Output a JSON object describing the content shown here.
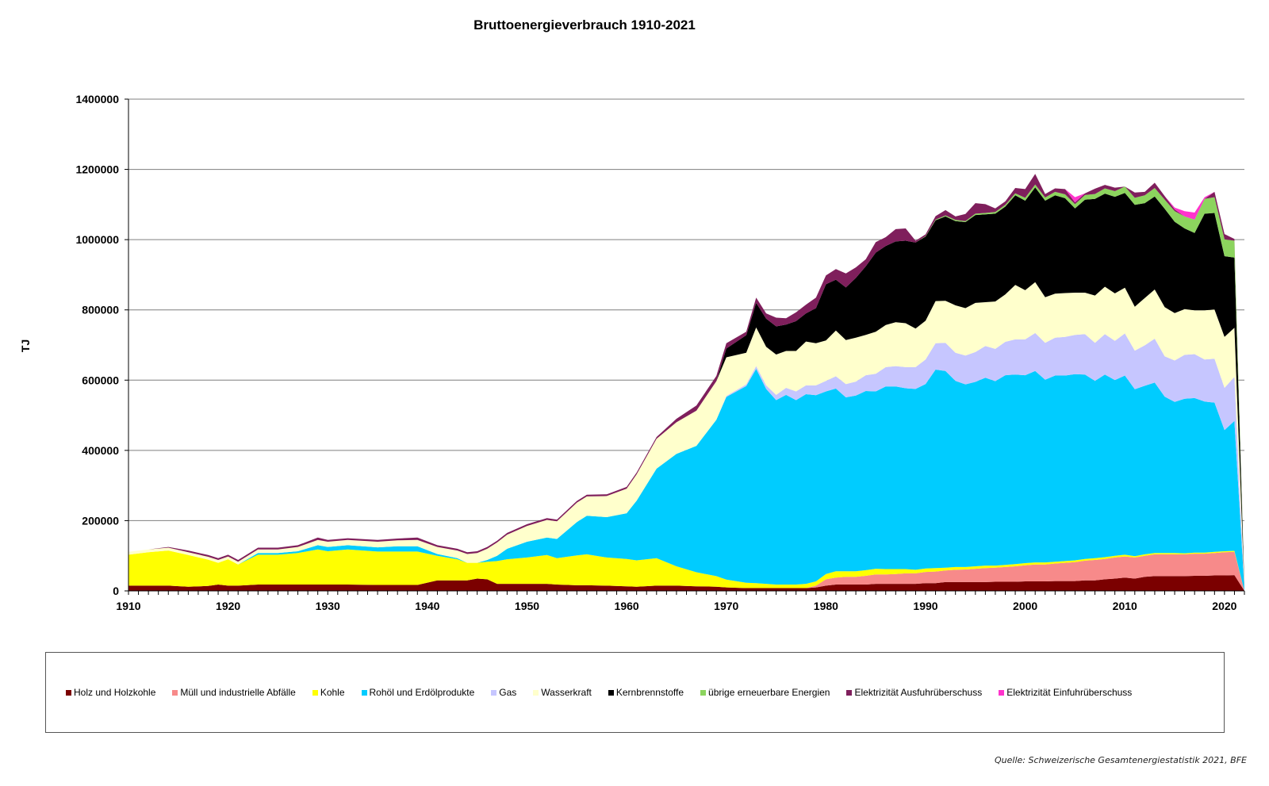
{
  "chart_data": {
    "type": "area",
    "stacked": true,
    "title": "Bruttoenergieverbrauch 1910-2021",
    "xlabel": "",
    "ylabel": "TJ",
    "xlim": [
      1910,
      2022
    ],
    "ylim": [
      0,
      1400000
    ],
    "x_ticks": [
      "1910",
      "1920",
      "1930",
      "1940",
      "1950",
      "1960",
      "1970",
      "1980",
      "1990",
      "2000",
      "2010",
      "2020"
    ],
    "y_ticks": [
      "0",
      "200000",
      "400000",
      "600000",
      "800000",
      "1000000",
      "1200000",
      "1400000"
    ],
    "grid": true,
    "legend_position": "bottom",
    "x": [
      1910,
      1912,
      1914,
      1916,
      1918,
      1919,
      1920,
      1921,
      1923,
      1925,
      1927,
      1929,
      1930,
      1932,
      1935,
      1937,
      1939,
      1941,
      1943,
      1944,
      1945,
      1946,
      1947,
      1948,
      1950,
      1952,
      1953,
      1955,
      1956,
      1958,
      1960,
      1961,
      1963,
      1965,
      1967,
      1969,
      1970,
      1972,
      1973,
      1974,
      1975,
      1976,
      1977,
      1978,
      1979,
      1980,
      1981,
      1982,
      1983,
      1984,
      1985,
      1986,
      1987,
      1988,
      1989,
      1990,
      1991,
      1992,
      1993,
      1994,
      1995,
      1996,
      1997,
      1998,
      1999,
      2000,
      2001,
      2002,
      2003,
      2004,
      2005,
      2006,
      2007,
      2008,
      2009,
      2010,
      2011,
      2012,
      2013,
      2014,
      2015,
      2016,
      2017,
      2018,
      2019,
      2020,
      2021,
      2022
    ],
    "series": [
      {
        "name": "Holz und Holzkohle",
        "color": "#7b0000",
        "values": [
          15000,
          15000,
          15000,
          12000,
          14000,
          18000,
          15000,
          15000,
          18000,
          18000,
          18000,
          18000,
          18000,
          18000,
          17000,
          17000,
          17000,
          30000,
          30000,
          30000,
          35000,
          33000,
          20000,
          20000,
          20000,
          20000,
          18000,
          16000,
          16000,
          15000,
          13000,
          12000,
          15000,
          15000,
          13000,
          12000,
          10000,
          8000,
          8000,
          8000,
          8000,
          8000,
          8000,
          8000,
          10000,
          15000,
          18000,
          18000,
          18000,
          18000,
          20000,
          20000,
          20000,
          20000,
          20000,
          22000,
          22000,
          25000,
          25000,
          25000,
          25000,
          25000,
          26000,
          26000,
          26000,
          27000,
          27000,
          27000,
          28000,
          28000,
          28000,
          30000,
          30000,
          33000,
          35000,
          38000,
          35000,
          40000,
          42000,
          42000,
          42000,
          42000,
          43000,
          43000,
          44000,
          44000,
          45000,
          0
        ]
      },
      {
        "name": "Müll und  industrielle Abfälle",
        "color": "#f78a8a",
        "values": [
          0,
          0,
          0,
          0,
          0,
          0,
          0,
          0,
          0,
          0,
          0,
          0,
          0,
          0,
          0,
          0,
          0,
          0,
          0,
          0,
          0,
          0,
          0,
          0,
          0,
          0,
          0,
          0,
          0,
          0,
          0,
          0,
          0,
          0,
          0,
          0,
          0,
          0,
          0,
          0,
          0,
          0,
          0,
          0,
          5000,
          18000,
          20000,
          22000,
          22000,
          25000,
          27000,
          27000,
          28000,
          30000,
          30000,
          32000,
          33000,
          33000,
          35000,
          36000,
          38000,
          40000,
          40000,
          42000,
          44000,
          46000,
          48000,
          48000,
          50000,
          52000,
          54000,
          56000,
          58000,
          58000,
          60000,
          60000,
          60000,
          60000,
          62000,
          62000,
          62000,
          62000,
          63000,
          63000,
          64000,
          66000,
          66000,
          0
        ]
      },
      {
        "name": "Kohle",
        "color": "#ffff00",
        "values": [
          88000,
          95000,
          100000,
          90000,
          75000,
          62000,
          75000,
          60000,
          85000,
          85000,
          90000,
          100000,
          95000,
          100000,
          95000,
          95000,
          95000,
          70000,
          60000,
          50000,
          45000,
          50000,
          65000,
          70000,
          75000,
          82000,
          75000,
          85000,
          88000,
          80000,
          78000,
          75000,
          78000,
          55000,
          40000,
          30000,
          22000,
          15000,
          14000,
          12000,
          10000,
          10000,
          10000,
          12000,
          12000,
          15000,
          18000,
          16000,
          16000,
          16000,
          16000,
          15000,
          14000,
          12000,
          10000,
          10000,
          10000,
          8000,
          8000,
          7000,
          7000,
          7000,
          6000,
          6000,
          6000,
          6000,
          6000,
          6000,
          5000,
          5000,
          5000,
          5000,
          5000,
          5000,
          5000,
          5000,
          4000,
          4000,
          4000,
          4000,
          4000,
          3000,
          3000,
          3000,
          3000,
          3000,
          3000,
          0
        ]
      },
      {
        "name": "Rohöl und Erdölprodukte",
        "color": "#00ccff",
        "values": [
          0,
          0,
          0,
          0,
          0,
          0,
          0,
          0,
          5000,
          5000,
          5000,
          12000,
          12000,
          12000,
          12000,
          15000,
          15000,
          5000,
          3000,
          0,
          0,
          5000,
          15000,
          30000,
          45000,
          50000,
          55000,
          95000,
          110000,
          115000,
          130000,
          170000,
          255000,
          320000,
          360000,
          445000,
          520000,
          560000,
          610000,
          555000,
          525000,
          540000,
          525000,
          540000,
          530000,
          520000,
          520000,
          495000,
          500000,
          510000,
          505000,
          520000,
          520000,
          515000,
          515000,
          525000,
          565000,
          560000,
          530000,
          520000,
          525000,
          535000,
          525000,
          540000,
          540000,
          535000,
          545000,
          520000,
          530000,
          528000,
          530000,
          525000,
          505000,
          520000,
          500000,
          510000,
          475000,
          480000,
          485000,
          445000,
          430000,
          440000,
          440000,
          430000,
          425000,
          345000,
          370000,
          5000
        ]
      },
      {
        "name": "Gas",
        "color": "#c6c6ff",
        "values": [
          0,
          0,
          0,
          0,
          0,
          0,
          0,
          0,
          0,
          0,
          0,
          0,
          0,
          0,
          0,
          0,
          0,
          0,
          0,
          0,
          0,
          0,
          0,
          0,
          0,
          0,
          0,
          0,
          0,
          0,
          0,
          0,
          0,
          0,
          0,
          0,
          3000,
          5000,
          8000,
          10000,
          15000,
          20000,
          25000,
          25000,
          28000,
          30000,
          35000,
          38000,
          40000,
          45000,
          50000,
          55000,
          58000,
          60000,
          62000,
          70000,
          75000,
          80000,
          80000,
          82000,
          85000,
          90000,
          92000,
          95000,
          100000,
          102000,
          108000,
          105000,
          108000,
          110000,
          112000,
          115000,
          108000,
          115000,
          112000,
          120000,
          110000,
          115000,
          125000,
          115000,
          118000,
          125000,
          125000,
          120000,
          125000,
          120000,
          125000,
          3000
        ]
      },
      {
        "name": "Wasserkraft",
        "color": "#ffffcc",
        "values": [
          8000,
          8000,
          8000,
          8000,
          8000,
          8000,
          8000,
          8000,
          10000,
          10000,
          12000,
          15000,
          15000,
          15000,
          16000,
          17000,
          18000,
          20000,
          22000,
          25000,
          28000,
          32000,
          38000,
          40000,
          45000,
          50000,
          50000,
          55000,
          55000,
          60000,
          70000,
          75000,
          85000,
          90000,
          100000,
          110000,
          110000,
          90000,
          110000,
          110000,
          115000,
          105000,
          115000,
          125000,
          120000,
          115000,
          130000,
          125000,
          125000,
          115000,
          120000,
          120000,
          125000,
          125000,
          110000,
          110000,
          120000,
          120000,
          135000,
          135000,
          140000,
          125000,
          135000,
          135000,
          155000,
          140000,
          145000,
          130000,
          125000,
          125000,
          120000,
          118000,
          135000,
          135000,
          135000,
          130000,
          125000,
          135000,
          140000,
          140000,
          135000,
          130000,
          125000,
          140000,
          140000,
          145000,
          140000,
          2000
        ]
      },
      {
        "name": "Kernbrennstoffe",
        "color": "#000000",
        "values": [
          0,
          0,
          0,
          0,
          0,
          0,
          0,
          0,
          0,
          0,
          0,
          0,
          0,
          0,
          0,
          0,
          0,
          0,
          0,
          0,
          0,
          0,
          0,
          0,
          0,
          0,
          0,
          0,
          0,
          0,
          0,
          0,
          0,
          0,
          0,
          0,
          25000,
          50000,
          70000,
          80000,
          80000,
          75000,
          85000,
          80000,
          100000,
          160000,
          145000,
          150000,
          170000,
          195000,
          225000,
          225000,
          230000,
          235000,
          245000,
          240000,
          230000,
          240000,
          240000,
          245000,
          250000,
          250000,
          250000,
          250000,
          255000,
          255000,
          270000,
          275000,
          280000,
          270000,
          240000,
          265000,
          275000,
          265000,
          275000,
          270000,
          290000,
          270000,
          265000,
          280000,
          260000,
          230000,
          220000,
          275000,
          275000,
          230000,
          200000,
          3000
        ]
      },
      {
        "name": "übrige erneuerbare Energien",
        "color": "#8cd45e",
        "values": [
          0,
          0,
          0,
          0,
          0,
          0,
          0,
          0,
          0,
          0,
          0,
          0,
          0,
          0,
          0,
          0,
          0,
          0,
          0,
          0,
          0,
          0,
          0,
          0,
          0,
          0,
          0,
          0,
          0,
          0,
          0,
          0,
          0,
          0,
          0,
          0,
          0,
          0,
          0,
          0,
          0,
          0,
          0,
          0,
          0,
          0,
          0,
          0,
          0,
          0,
          0,
          0,
          0,
          0,
          0,
          1000,
          2000,
          3000,
          3000,
          3000,
          4000,
          4000,
          5000,
          5000,
          6000,
          8000,
          8000,
          9000,
          10000,
          11000,
          12000,
          13000,
          14000,
          15000,
          16000,
          18000,
          20000,
          22000,
          24000,
          26000,
          30000,
          34000,
          38000,
          42000,
          45000,
          48000,
          48000,
          2000
        ]
      },
      {
        "name": "Elektrizität Ausfuhrüberschuss",
        "color": "#7f1f5c",
        "values": [
          0,
          0,
          2000,
          5000,
          5000,
          5000,
          5000,
          5000,
          5000,
          5000,
          5000,
          7000,
          5000,
          5000,
          5000,
          5000,
          7000,
          5000,
          5000,
          5000,
          5000,
          5000,
          5000,
          5000,
          5000,
          5000,
          5000,
          5000,
          5000,
          5000,
          5000,
          5000,
          5000,
          10000,
          15000,
          15000,
          15000,
          10000,
          15000,
          15000,
          25000,
          18000,
          25000,
          25000,
          30000,
          25000,
          30000,
          40000,
          30000,
          20000,
          30000,
          25000,
          35000,
          35000,
          5000,
          5000,
          10000,
          15000,
          10000,
          20000,
          30000,
          25000,
          10000,
          10000,
          15000,
          25000,
          30000,
          10000,
          10000,
          15000,
          5000,
          5000,
          15000,
          10000,
          10000,
          0,
          15000,
          10000,
          15000,
          10000,
          5000,
          0,
          0,
          0,
          15000,
          15000,
          5000,
          0
        ]
      },
      {
        "name": "Elektrizität Einfuhrüberschuss",
        "color": "#ff33cc",
        "values": [
          0,
          0,
          0,
          0,
          0,
          0,
          0,
          0,
          0,
          0,
          0,
          0,
          0,
          0,
          0,
          0,
          0,
          0,
          0,
          0,
          0,
          0,
          0,
          0,
          0,
          0,
          0,
          0,
          0,
          0,
          0,
          0,
          0,
          0,
          0,
          0,
          0,
          0,
          0,
          0,
          0,
          0,
          0,
          0,
          0,
          0,
          0,
          0,
          0,
          0,
          0,
          0,
          0,
          0,
          0,
          0,
          0,
          0,
          0,
          0,
          0,
          0,
          0,
          0,
          0,
          0,
          0,
          0,
          0,
          0,
          15000,
          0,
          0,
          0,
          0,
          0,
          0,
          0,
          0,
          0,
          5000,
          15000,
          20000,
          5000,
          0,
          0,
          0,
          0
        ]
      }
    ],
    "source_note": "Quelle: Schweizerische Gesamtenergiestatistik 2021, BFE"
  }
}
